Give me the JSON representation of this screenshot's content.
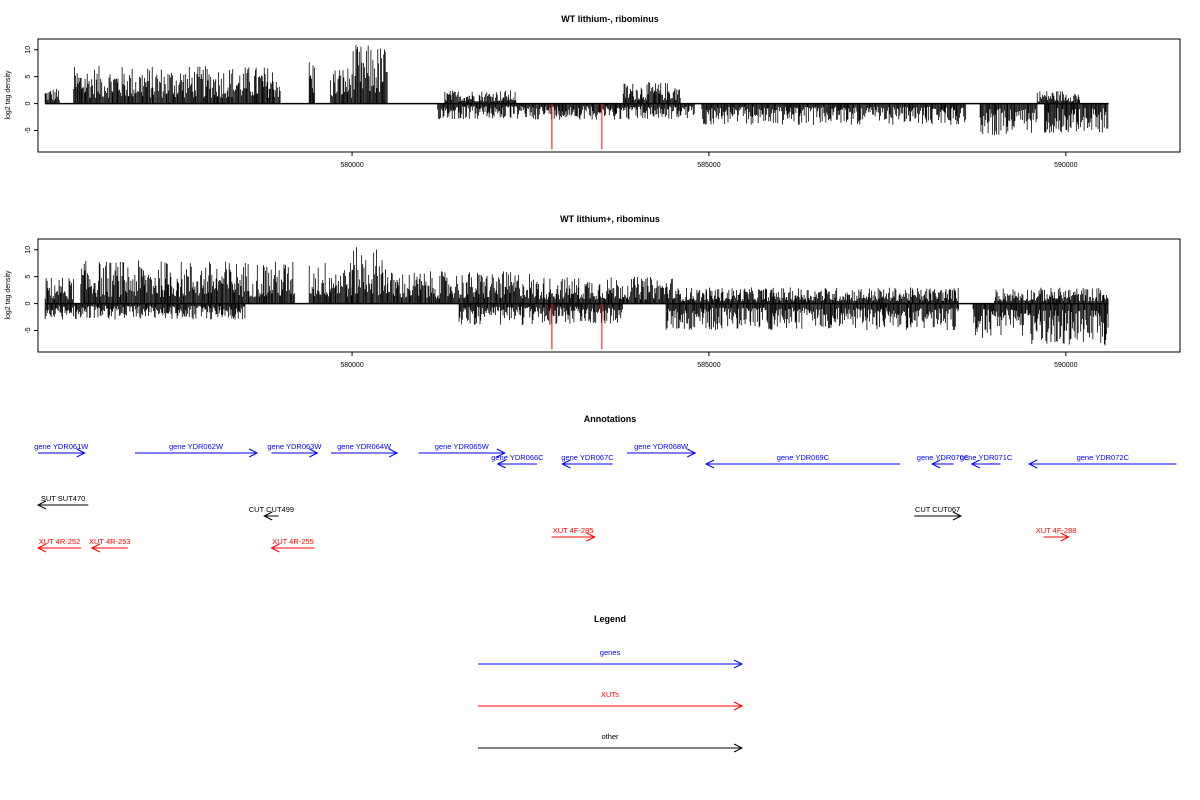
{
  "chart_data": [
    {
      "type": "bar",
      "title": "WT lithium-, ribominus",
      "ylabel": "log2 tag density",
      "xlim": [
        575600,
        591600
      ],
      "ylim": [
        -9,
        12
      ],
      "x_ticks": [
        580000,
        585000,
        590000
      ],
      "y_ticks": [
        -5,
        0,
        5,
        10
      ],
      "positive_segments": [
        {
          "from": 575700,
          "to": 575900,
          "max": 3
        },
        {
          "from": 576100,
          "to": 579000,
          "max": 7
        },
        {
          "from": 579400,
          "to": 579480,
          "max": 8.5
        },
        {
          "from": 579700,
          "to": 580000,
          "max": 7
        },
        {
          "from": 580000,
          "to": 580500,
          "max": 11
        },
        {
          "from": 581300,
          "to": 582300,
          "max": 2.5
        },
        {
          "from": 583800,
          "to": 584600,
          "max": 4
        },
        {
          "from": 589600,
          "to": 590200,
          "max": 2.5
        }
      ],
      "negative_segments": [
        {
          "from": 581200,
          "to": 584800,
          "min": -3
        },
        {
          "from": 584900,
          "to": 588600,
          "min": -4
        },
        {
          "from": 588800,
          "to": 589600,
          "min": -6
        },
        {
          "from": 589700,
          "to": 590600,
          "min": -5.5
        }
      ],
      "highlight_bars": [
        {
          "x": 582800,
          "value": -8.5,
          "color": "#ff0000"
        },
        {
          "x": 583500,
          "value": -8.5,
          "color": "#ff0000"
        }
      ]
    },
    {
      "type": "bar",
      "title": "WT lithium+, ribominus",
      "ylabel": "log2 tag density",
      "xlim": [
        575600,
        591600
      ],
      "ylim": [
        -9,
        12
      ],
      "x_ticks": [
        580000,
        585000,
        590000
      ],
      "y_ticks": [
        -5,
        0,
        5,
        10
      ],
      "positive_segments": [
        {
          "from": 575700,
          "to": 576100,
          "max": 5
        },
        {
          "from": 576200,
          "to": 579200,
          "max": 8
        },
        {
          "from": 579400,
          "to": 580000,
          "max": 8
        },
        {
          "from": 580000,
          "to": 580500,
          "max": 10.5
        },
        {
          "from": 580500,
          "to": 582500,
          "max": 6
        },
        {
          "from": 582500,
          "to": 584500,
          "max": 5
        },
        {
          "from": 584500,
          "to": 588500,
          "max": 3
        },
        {
          "from": 589000,
          "to": 590600,
          "max": 3
        }
      ],
      "negative_segments": [
        {
          "from": 575700,
          "to": 578500,
          "min": -3
        },
        {
          "from": 581500,
          "to": 583800,
          "min": -4
        },
        {
          "from": 584400,
          "to": 588500,
          "min": -5
        },
        {
          "from": 588700,
          "to": 589500,
          "min": -6.5
        },
        {
          "from": 589500,
          "to": 590600,
          "min": -8
        }
      ],
      "highlight_bars": [
        {
          "x": 582800,
          "value": -8.5,
          "color": "#ff0000"
        },
        {
          "x": 583500,
          "value": -8.5,
          "color": "#ff0000"
        }
      ]
    }
  ],
  "annotations": {
    "title": "Annotations",
    "features": [
      {
        "label": "gene YDR061W",
        "type": "genes",
        "strand": "+",
        "start": 575550,
        "end": 576300,
        "row": 0
      },
      {
        "label": "gene YDR062W",
        "type": "genes",
        "strand": "+",
        "start": 577000,
        "end": 578700,
        "row": 0
      },
      {
        "label": "gene YDR063W",
        "type": "genes",
        "strand": "+",
        "start": 578900,
        "end": 579540,
        "row": 0
      },
      {
        "label": "gene YDR064W",
        "type": "genes",
        "strand": "+",
        "start": 579730,
        "end": 580650,
        "row": 0
      },
      {
        "label": "gene YDR065W",
        "type": "genes",
        "strand": "+",
        "start": 580950,
        "end": 582150,
        "row": 0
      },
      {
        "label": "gene YDR066C",
        "type": "genes",
        "strand": "-",
        "start": 582050,
        "end": 582600,
        "row": 1
      },
      {
        "label": "gene YDR067C",
        "type": "genes",
        "strand": "-",
        "start": 582950,
        "end": 583650,
        "row": 1
      },
      {
        "label": "gene YDR068W",
        "type": "genes",
        "strand": "+",
        "start": 583850,
        "end": 584800,
        "row": 0
      },
      {
        "label": "gene YDR069C",
        "type": "genes",
        "strand": "-",
        "start": 584950,
        "end": 587650,
        "row": 1
      },
      {
        "label": "gene YDR070C",
        "type": "genes",
        "strand": "-",
        "start": 588100,
        "end": 588400,
        "row": 1
      },
      {
        "label": "gene YDR071C",
        "type": "genes",
        "strand": "-",
        "start": 588650,
        "end": 589050,
        "row": 1
      },
      {
        "label": "gene YDR072C",
        "type": "genes",
        "strand": "-",
        "start": 589450,
        "end": 591500,
        "row": 1
      },
      {
        "label": "SUT SUT470",
        "type": "other",
        "strand": "-",
        "start": 575600,
        "end": 576350,
        "row": 2
      },
      {
        "label": "CUT CUT499",
        "type": "other",
        "strand": "-",
        "start": 578800,
        "end": 579000,
        "row": 3
      },
      {
        "label": "CUT CUT067",
        "type": "other",
        "strand": "+",
        "start": 587850,
        "end": 588500,
        "row": 3
      },
      {
        "label": "XUT 4R-252",
        "type": "XUTs",
        "strand": "-",
        "start": 575600,
        "end": 576250,
        "row": 4
      },
      {
        "label": "XUT 4R-253",
        "type": "XUTs",
        "strand": "-",
        "start": 576400,
        "end": 576900,
        "row": 4
      },
      {
        "label": "XUT 4R-255",
        "type": "XUTs",
        "strand": "-",
        "start": 578900,
        "end": 579500,
        "row": 4
      },
      {
        "label": "XUT 4F-285",
        "type": "XUTs",
        "strand": "+",
        "start": 582800,
        "end": 583400,
        "row": 5
      },
      {
        "label": "XUT 4F-288",
        "type": "XUTs",
        "strand": "+",
        "start": 589650,
        "end": 590000,
        "row": 5
      }
    ]
  },
  "legend": {
    "title": "Legend",
    "items": [
      {
        "label": "genes",
        "color": "#0000ff"
      },
      {
        "label": "XUTs",
        "color": "#ff0000"
      },
      {
        "label": "other",
        "color": "#000000"
      }
    ]
  }
}
